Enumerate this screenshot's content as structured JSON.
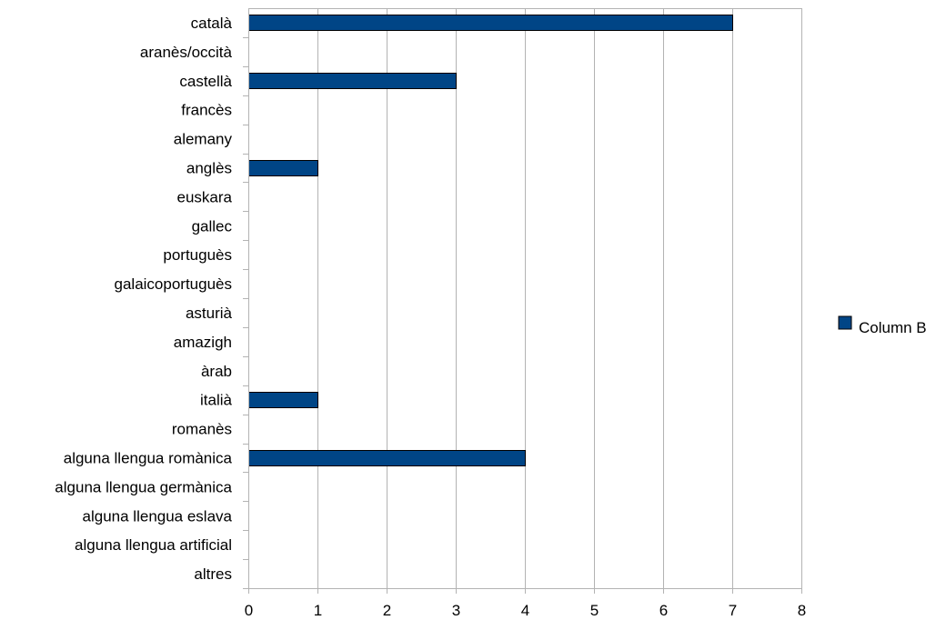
{
  "chart_data": {
    "type": "bar",
    "orientation": "horizontal",
    "categories": [
      "català",
      "aranès/occità",
      "castellà",
      "francès",
      "alemany",
      "anglès",
      "euskara",
      "gallec",
      "portuguès",
      "galaicoportuguès",
      "asturià",
      "amazigh",
      "àrab",
      "italià",
      "romanès",
      "alguna llengua romànica",
      "alguna llengua germànica",
      "alguna llengua eslava",
      "alguna llengua artificial",
      "altres"
    ],
    "series": [
      {
        "name": "Column B",
        "color": "#004586",
        "values": [
          7,
          0,
          3,
          0,
          0,
          1,
          0,
          0,
          0,
          0,
          0,
          0,
          0,
          1,
          0,
          4,
          0,
          0,
          0,
          0
        ]
      }
    ],
    "xlim": [
      0,
      8
    ],
    "xticks": [
      0,
      1,
      2,
      3,
      4,
      5,
      6,
      7,
      8
    ],
    "grid": true,
    "legend_position": "right",
    "title": "",
    "xlabel": "",
    "ylabel": ""
  }
}
